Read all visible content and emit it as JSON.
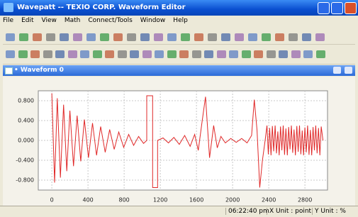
{
  "window": {
    "title": "Wavepatt -- TEXIO CORP. Waveform Editor"
  },
  "menu": [
    "File",
    "Edit",
    "View",
    "Math",
    "Connect/Tools",
    "Window",
    "Help"
  ],
  "document": {
    "title": "• Waveform 0"
  },
  "chart_data": {
    "type": "line",
    "x": [
      0,
      30,
      60,
      95,
      130,
      165,
      200,
      240,
      280,
      320,
      360,
      405,
      450,
      495,
      540,
      590,
      640,
      690,
      740,
      795,
      850,
      905,
      960,
      1015,
      1050,
      1050,
      1115,
      1115,
      1170,
      1170,
      1230,
      1290,
      1350,
      1410,
      1470,
      1530,
      1580,
      1620,
      1660,
      1700,
      1745,
      1790,
      1830,
      1870,
      1920,
      1980,
      2040,
      2100,
      2160,
      2210,
      2240,
      2270,
      2300,
      2330,
      2360,
      2380,
      2395,
      2410,
      2425,
      2440,
      2455,
      2470,
      2485,
      2500,
      2515,
      2530,
      2545,
      2560,
      2575,
      2590,
      2605,
      2620,
      2635,
      2650,
      2665,
      2680,
      2695,
      2710,
      2725,
      2740,
      2755,
      2770,
      2785,
      2800,
      2815,
      2830,
      2845,
      2860,
      2875,
      2890,
      2905,
      2920,
      2935,
      2950,
      2965,
      2980,
      3000
    ],
    "series": [
      {
        "color": "#e02828",
        "values": [
          0.95,
          -0.85,
          0.85,
          -0.75,
          0.72,
          -0.62,
          0.6,
          -0.52,
          0.5,
          -0.42,
          0.42,
          -0.35,
          0.35,
          -0.3,
          0.28,
          -0.24,
          0.22,
          -0.18,
          0.17,
          -0.14,
          0.12,
          -0.1,
          0.08,
          -0.06,
          0,
          0.9,
          0.9,
          -0.95,
          -0.95,
          0,
          0.05,
          -0.05,
          0.06,
          -0.08,
          0.1,
          -0.12,
          0.12,
          -0.2,
          0.35,
          0.88,
          -0.35,
          0.3,
          -0.15,
          0.08,
          -0.05,
          0.04,
          -0.04,
          0.04,
          -0.05,
          0.1,
          0.82,
          0.2,
          -0.95,
          -0.4,
          0,
          0.3,
          -0.28,
          0.25,
          -0.3,
          0.29,
          -0.22,
          0.3,
          -0.26,
          0.18,
          -0.3,
          0.28,
          -0.2,
          0.3,
          -0.29,
          0.24,
          -0.3,
          0.27,
          -0.18,
          0.3,
          -0.25,
          0.22,
          -0.3,
          0.29,
          -0.23,
          0.3,
          -0.28,
          0.2,
          -0.3,
          0.26,
          -0.24,
          0.3,
          -0.29,
          0.21,
          -0.3,
          0.27,
          -0.2,
          0.3,
          -0.26,
          0.25,
          -0.3,
          0.28,
          0
        ]
      }
    ],
    "xlim": [
      -150,
      3050
    ],
    "ylim": [
      -1,
      1
    ],
    "xticks": [
      0,
      400,
      800,
      1200,
      1600,
      2000,
      2400,
      2800
    ],
    "yticks": [
      {
        "value": 0.8,
        "label": "0.800"
      },
      {
        "value": 0.4,
        "label": "0.400"
      },
      {
        "value": 0,
        "label": "0.000"
      },
      {
        "value": -0.4,
        "label": "-0.400"
      },
      {
        "value": -0.8,
        "label": "-0.800"
      }
    ],
    "grid": true
  },
  "status_bar": [
    "06:22:40 pm",
    "X Unit : point",
    "Y Unit : %"
  ]
}
